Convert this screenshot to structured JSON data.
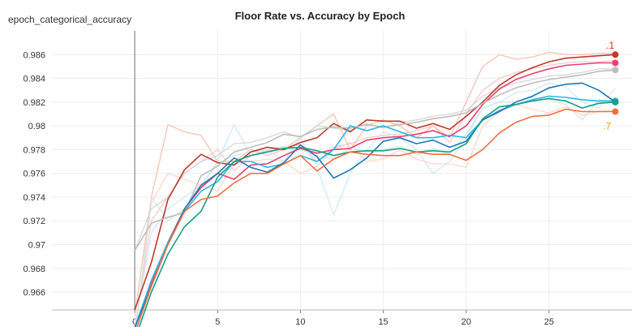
{
  "chart_data": {
    "type": "line",
    "title": "Floor Rate vs. Accuracy by Epoch",
    "ylabel": "epoch_categorical_accuracy",
    "xlabel": "",
    "xlim": [
      -5,
      30
    ],
    "ylim": [
      0.9645,
      0.988
    ],
    "xticks": [
      0,
      5,
      10,
      15,
      20,
      25
    ],
    "yticks": [
      0.966,
      0.968,
      0.97,
      0.972,
      0.974,
      0.976,
      0.978,
      0.98,
      0.982,
      0.984,
      0.986
    ],
    "ytick_labels": [
      "0.966",
      "0.968",
      "0.97",
      "0.972",
      "0.974",
      "0.976",
      "0.978",
      "0.98",
      "0.982",
      "0.984",
      "0.986"
    ],
    "grid": true,
    "x": [
      0,
      1,
      2,
      3,
      4,
      5,
      6,
      7,
      8,
      9,
      10,
      11,
      12,
      13,
      14,
      15,
      16,
      17,
      18,
      19,
      20,
      21,
      22,
      23,
      24,
      25,
      26,
      27,
      28,
      29
    ],
    "annotations": [
      {
        "text": ".1",
        "color": "#d62728",
        "x": 28.7,
        "y": 0.9865
      },
      {
        "text": ".7",
        "color": "#f0a000",
        "x": 28.5,
        "y": 0.9797
      }
    ],
    "series": [
      {
        "color": "#c0392b",
        "values": [
          0.9645,
          0.9685,
          0.9738,
          0.9763,
          0.9776,
          0.9769,
          0.9767,
          0.9778,
          0.9782,
          0.978,
          0.9786,
          0.979,
          0.9802,
          0.9795,
          0.9805,
          0.9804,
          0.9804,
          0.9798,
          0.9802,
          0.9797,
          0.9808,
          0.982,
          0.9834,
          0.9843,
          0.9849,
          0.9854,
          0.9857,
          0.9858,
          0.9859,
          0.986
        ]
      },
      {
        "color": "#e8406e",
        "values": [
          0.963,
          0.9668,
          0.9702,
          0.973,
          0.9748,
          0.976,
          0.9755,
          0.9767,
          0.9768,
          0.9775,
          0.9781,
          0.9777,
          0.978,
          0.9781,
          0.9788,
          0.979,
          0.9791,
          0.9793,
          0.9796,
          0.9791,
          0.98,
          0.9818,
          0.9831,
          0.9839,
          0.9844,
          0.9848,
          0.9851,
          0.9852,
          0.9853,
          0.9853
        ]
      },
      {
        "color": "#bdbdbd",
        "values": [
          0.9695,
          0.9718,
          0.9723,
          0.9727,
          0.9758,
          0.9766,
          0.9778,
          0.9782,
          0.9786,
          0.9793,
          0.9791,
          0.9797,
          0.9799,
          0.9798,
          0.9801,
          0.9799,
          0.9801,
          0.9803,
          0.9806,
          0.9808,
          0.9811,
          0.9819,
          0.9826,
          0.9832,
          0.9836,
          0.9839,
          0.9841,
          0.9843,
          0.9846,
          0.9847
        ]
      },
      {
        "color": "#29b6e8",
        "values": [
          0.963,
          0.967,
          0.9702,
          0.9728,
          0.9745,
          0.9753,
          0.977,
          0.977,
          0.9765,
          0.9768,
          0.9775,
          0.977,
          0.978,
          0.98,
          0.9796,
          0.98,
          0.9795,
          0.979,
          0.979,
          0.9792,
          0.979,
          0.9805,
          0.9813,
          0.9818,
          0.9822,
          0.9825,
          0.9824,
          0.9822,
          0.9821,
          0.9821
        ]
      },
      {
        "color": "#1f77b4",
        "values": [
          0.963,
          0.9665,
          0.97,
          0.973,
          0.975,
          0.976,
          0.9773,
          0.9765,
          0.9761,
          0.9769,
          0.9784,
          0.9774,
          0.9756,
          0.9763,
          0.9773,
          0.9787,
          0.979,
          0.9785,
          0.9788,
          0.9782,
          0.9787,
          0.9805,
          0.9812,
          0.982,
          0.9825,
          0.9832,
          0.9835,
          0.9836,
          0.983,
          0.982
        ]
      },
      {
        "color": "#16a085",
        "values": [
          0.962,
          0.966,
          0.9692,
          0.9715,
          0.9728,
          0.9757,
          0.977,
          0.9775,
          0.9778,
          0.9781,
          0.9782,
          0.9779,
          0.9775,
          0.9778,
          0.9779,
          0.9779,
          0.9781,
          0.9778,
          0.9779,
          0.9778,
          0.9785,
          0.9806,
          0.9816,
          0.9818,
          0.9821,
          0.9823,
          0.9821,
          0.9815,
          0.9819,
          0.982
        ]
      },
      {
        "color": "#f07040",
        "values": [
          0.9625,
          0.9665,
          0.97,
          0.9728,
          0.9738,
          0.9741,
          0.9752,
          0.976,
          0.976,
          0.9768,
          0.9775,
          0.9762,
          0.9772,
          0.9778,
          0.9776,
          0.9775,
          0.9775,
          0.9778,
          0.9776,
          0.9776,
          0.9771,
          0.978,
          0.9794,
          0.9803,
          0.9808,
          0.9809,
          0.9814,
          0.9812,
          0.9812,
          0.9812
        ]
      }
    ],
    "raw_series": [
      {
        "color": "#f4b8a8",
        "values": [
          0.964,
          0.974,
          0.9801,
          0.9795,
          0.9792,
          0.977,
          0.977,
          0.978,
          0.9775,
          0.978,
          0.979,
          0.98,
          0.981,
          0.978,
          0.98,
          0.9805,
          0.98,
          0.979,
          0.98,
          0.979,
          0.982,
          0.985,
          0.986,
          0.9856,
          0.9858,
          0.9862,
          0.986,
          0.986,
          0.9861,
          0.9861
        ]
      },
      {
        "color": "#f4c0c8",
        "values": [
          0.963,
          0.972,
          0.974,
          0.976,
          0.977,
          0.978,
          0.9762,
          0.9775,
          0.9779,
          0.9782,
          0.9784,
          0.977,
          0.9782,
          0.9785,
          0.979,
          0.9792,
          0.9793,
          0.9796,
          0.98,
          0.9786,
          0.981,
          0.983,
          0.984,
          0.9845,
          0.9848,
          0.9851,
          0.9853,
          0.9854,
          0.9854,
          0.9855
        ]
      },
      {
        "color": "#ffd0c0",
        "values": [
          0.9625,
          0.9735,
          0.976,
          0.9755,
          0.975,
          0.9745,
          0.9768,
          0.977,
          0.9772,
          0.977,
          0.976,
          0.9766,
          0.978,
          0.9786,
          0.977,
          0.9772,
          0.978,
          0.9772,
          0.9768,
          0.9768,
          0.9765,
          0.98,
          0.9812,
          0.9818,
          0.9814,
          0.9811,
          0.9816,
          0.9809,
          0.9812,
          0.9813
        ]
      },
      {
        "color": "#c8e6f2",
        "values": [
          0.963,
          0.971,
          0.973,
          0.974,
          0.975,
          0.977,
          0.9801,
          0.9775,
          0.978,
          0.977,
          0.979,
          0.9765,
          0.9725,
          0.976,
          0.978,
          0.9795,
          0.979,
          0.978,
          0.976,
          0.977,
          0.979,
          0.9815,
          0.982,
          0.9828,
          0.983,
          0.9836,
          0.9833,
          0.982,
          0.9815,
          0.9832
        ]
      },
      {
        "color": "#d0d0d0",
        "values": [
          0.9695,
          0.973,
          0.974,
          0.976,
          0.977,
          0.9775,
          0.9785,
          0.9786,
          0.979,
          0.9795,
          0.979,
          0.98,
          0.9798,
          0.9796,
          0.9802,
          0.9798,
          0.9803,
          0.9805,
          0.9808,
          0.981,
          0.9813,
          0.9825,
          0.9832,
          0.9836,
          0.9839,
          0.9842,
          0.9843,
          0.9845,
          0.9848,
          0.9848
        ]
      },
      {
        "color": "#c5e8e0",
        "values": [
          0.962,
          0.974,
          0.972,
          0.973,
          0.975,
          0.9768,
          0.9775,
          0.9778,
          0.978,
          0.9783,
          0.978,
          0.9775,
          0.9772,
          0.9781,
          0.9778,
          0.978,
          0.9783,
          0.9776,
          0.9781,
          0.9776,
          0.9793,
          0.9815,
          0.982,
          0.982,
          0.9824,
          0.9822,
          0.9818,
          0.9805,
          0.9822,
          0.982
        ]
      }
    ]
  }
}
